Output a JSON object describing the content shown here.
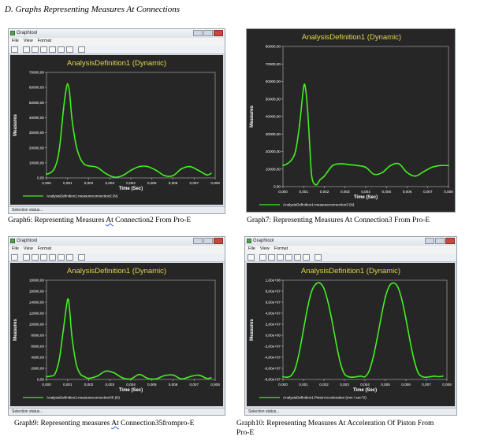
{
  "heading": "D.   Graphs Representing Measures At Connections",
  "window": {
    "app_title": "Graphtool",
    "menu": [
      "File",
      "View",
      "Format"
    ],
    "status": "Selection status..."
  },
  "captions": [
    {
      "pre": "Graph6:  Representing Measures ",
      "mark": "At",
      "post": " Connection2 From Pro-E"
    },
    {
      "pre": "Graph7:  Representing Measures At Connection3 From Pro-E",
      "mark": "",
      "post": ""
    },
    {
      "pre": "Graph9: Representing measures ",
      "mark": "At",
      "post": " Connection35frompro-E"
    },
    {
      "pre": "Graph10:  Representing Measures At Acceleration Of Piston From",
      "mark": "",
      "post": "",
      "line2": "Pro-E"
    }
  ],
  "colors": {
    "line": "#44ee22",
    "plot_bg": "#262626",
    "title": "#e6d54a"
  },
  "chart_data": [
    {
      "type": "line",
      "title": "AnalysisDefinition1 (Dynamic)",
      "xlabel": "Time (Sec)",
      "ylabel": "Measures",
      "xlim": [
        0,
        0.008
      ],
      "ylim": [
        0,
        70000
      ],
      "x_ticks": [
        "0,000",
        "0,001",
        "0,002",
        "0,003",
        "0,004",
        "0,005",
        "0,006",
        "0,007",
        "0,008"
      ],
      "y_ticks": [
        "0,00",
        "10000,00",
        "20000,00",
        "30000,00",
        "40000,00",
        "50000,00",
        "60000,00",
        "70000,00"
      ],
      "legend": "AnalysisDefinition1:measureconnection2 (N)",
      "series": [
        {
          "x": [
            0,
            0.0002,
            0.0004,
            0.0006,
            0.0008,
            0.0009,
            0.001,
            0.0011,
            0.0012,
            0.0014,
            0.0016,
            0.0018,
            0.002,
            0.0024,
            0.0028,
            0.0032,
            0.0036,
            0.004,
            0.0044,
            0.0048,
            0.0052,
            0.0056,
            0.006,
            0.0064,
            0.0068,
            0.0072,
            0.0076,
            0.0078
          ],
          "y": [
            2500,
            3500,
            7000,
            18000,
            45000,
            56000,
            62500,
            56000,
            40000,
            22000,
            13000,
            9000,
            8000,
            7000,
            3000,
            500,
            1500,
            5000,
            7500,
            7500,
            5000,
            1500,
            1500,
            6000,
            7500,
            5000,
            2000,
            3000
          ]
        }
      ]
    },
    {
      "type": "line",
      "title": "AnalysisDefinition1 (Dynamic)",
      "xlabel": "Time (Sec)",
      "ylabel": "Measures",
      "xlim": [
        0,
        0.008
      ],
      "ylim": [
        0,
        80000
      ],
      "x_ticks": [
        "0,000",
        "0,001",
        "0,002",
        "0,003",
        "0,004",
        "0,005",
        "0,006",
        "0,007",
        "0,008"
      ],
      "y_ticks": [
        "0,00",
        "10000,00",
        "20000,00",
        "30000,00",
        "40000,00",
        "50000,00",
        "60000,00",
        "70000,00",
        "80000,00"
      ],
      "legend": "AnalysisDefinition1:measureconnection3 (N)",
      "series": [
        {
          "x": [
            0,
            0.0002,
            0.0004,
            0.0006,
            0.0008,
            0.001,
            0.0011,
            0.0012,
            0.0013,
            0.0014,
            0.0016,
            0.0018,
            0.002,
            0.0024,
            0.0028,
            0.0032,
            0.0036,
            0.004,
            0.0044,
            0.0048,
            0.0052,
            0.0056,
            0.006,
            0.0064,
            0.0068,
            0.0072,
            0.0076,
            0.008
          ],
          "y": [
            12000,
            13000,
            15000,
            20000,
            35000,
            57000,
            55000,
            42000,
            22000,
            5000,
            1000,
            4000,
            6000,
            12000,
            13000,
            12500,
            12000,
            11000,
            7000,
            8000,
            12000,
            13000,
            8000,
            6000,
            8500,
            11000,
            12000,
            12000
          ]
        }
      ]
    },
    {
      "type": "line",
      "title": "AnalysisDefinition1 (Dynamic)",
      "xlabel": "Time (Sec)",
      "ylabel": "Measures",
      "xlim": [
        0,
        0.008
      ],
      "ylim": [
        0,
        18000
      ],
      "x_ticks": [
        "0,000",
        "0,001",
        "0,002",
        "0,003",
        "0,004",
        "0,005",
        "0,006",
        "0,007",
        "0,008"
      ],
      "y_ticks": [
        "0,00",
        "2000,00",
        "4000,00",
        "6000,00",
        "8000,00",
        "10000,00",
        "12000,00",
        "14000,00",
        "16000,00",
        "18000,00"
      ],
      "legend": "AnalysisDefinition1:measureconnection35 (N)",
      "series": [
        {
          "x": [
            0,
            0.0002,
            0.0004,
            0.0006,
            0.0008,
            0.001,
            0.0011,
            0.0012,
            0.0014,
            0.0016,
            0.0018,
            0.002,
            0.0024,
            0.0028,
            0.0032,
            0.0036,
            0.004,
            0.0044,
            0.0048,
            0.0052,
            0.0056,
            0.006,
            0.0064,
            0.0068,
            0.0072,
            0.0076,
            0.0078
          ],
          "y": [
            500,
            600,
            1000,
            3500,
            9000,
            14500,
            12500,
            8000,
            3000,
            1000,
            500,
            200,
            600,
            1500,
            1200,
            300,
            100,
            900,
            200,
            100,
            700,
            800,
            100,
            500,
            800,
            200,
            300
          ]
        }
      ]
    },
    {
      "type": "line",
      "title": "AnalysisDefinition1 (Dynamic)",
      "xlabel": "Time (Sec)",
      "ylabel": "Measures",
      "xlim": [
        0,
        0.008
      ],
      "ylim": [
        -80000000,
        100000000
      ],
      "x_ticks": [
        "0,000",
        "0,001",
        "0,002",
        "0,003",
        "0,004",
        "0,005",
        "0,006",
        "0,007",
        "0,008"
      ],
      "y_ticks": [
        "-8,00e+07",
        "-6,00e+07",
        "-4,00e+07",
        "-2,00e+07",
        "0,00e+00",
        "2,00e+07",
        "4,00e+07",
        "6,00e+07",
        "8,00e+07",
        "1,00e+08"
      ],
      "legend": "AnalysisDefinition1:PistonAcceleration (mm / sec^2)",
      "series": [
        {
          "x": [
            0,
            0.0002,
            0.0004,
            0.0006,
            0.0008,
            0.001,
            0.0012,
            0.0014,
            0.0016,
            0.0018,
            0.002,
            0.0022,
            0.0024,
            0.0026,
            0.0028,
            0.003,
            0.0032,
            0.0034,
            0.0036,
            0.0038,
            0.004,
            0.0042,
            0.0044,
            0.0046,
            0.0048,
            0.005,
            0.0052,
            0.0054,
            0.0056,
            0.0058,
            0.006,
            0.0062,
            0.0064,
            0.0066,
            0.0068,
            0.007,
            0.0072,
            0.0074,
            0.0076,
            0.0078
          ],
          "y": [
            -75000000,
            -76000000,
            -73000000,
            -60000000,
            -30000000,
            10000000,
            50000000,
            80000000,
            93000000,
            95000000,
            85000000,
            60000000,
            25000000,
            -15000000,
            -50000000,
            -70000000,
            -75000000,
            -76000000,
            -75000000,
            -74000000,
            -75000000,
            -65000000,
            -40000000,
            -5000000,
            35000000,
            70000000,
            90000000,
            95000000,
            88000000,
            65000000,
            30000000,
            -10000000,
            -45000000,
            -68000000,
            -75000000,
            -76000000,
            -75000000,
            -74000000,
            -75000000,
            -74000000
          ]
        }
      ]
    }
  ]
}
